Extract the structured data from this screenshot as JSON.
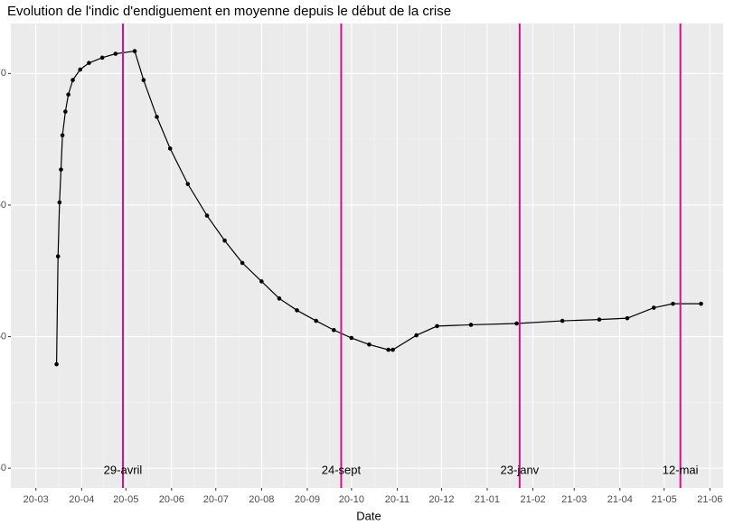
{
  "chart_data": {
    "type": "line",
    "title": "Evolution de l'indic d'endiguement en moyenne depuis le début de la crise",
    "x_label": "Date",
    "color": "#000000",
    "grid": true,
    "x": [
      "2020-03-15",
      "2020-03-16",
      "2020-03-17",
      "2020-03-18",
      "2020-03-19",
      "2020-03-21",
      "2020-03-23",
      "2020-03-26",
      "2020-03-31",
      "2020-04-06",
      "2020-04-15",
      "2020-04-24",
      "2020-05-07",
      "2020-05-13",
      "2020-05-22",
      "2020-05-31",
      "2020-06-12",
      "2020-06-25",
      "2020-07-07",
      "2020-07-19",
      "2020-08-01",
      "2020-08-13",
      "2020-08-25",
      "2020-09-07",
      "2020-09-19",
      "2020-10-01",
      "2020-10-13",
      "2020-10-26",
      "2020-10-29",
      "2020-11-14",
      "2020-11-28",
      "2020-12-21",
      "2021-01-21",
      "2021-02-21",
      "2021-03-18",
      "2021-04-06",
      "2021-04-24",
      "2021-05-07",
      "2021-05-26"
    ],
    "values": [
      47.9,
      56.1,
      60.2,
      62.7,
      65.3,
      67.1,
      68.4,
      69.5,
      70.3,
      70.8,
      71.2,
      71.5,
      71.7,
      69.5,
      66.7,
      64.3,
      61.6,
      59.2,
      57.3,
      55.6,
      54.2,
      52.9,
      52.0,
      51.2,
      50.5,
      49.9,
      49.4,
      49.0,
      49.0,
      50.1,
      50.8,
      50.9,
      51.0,
      51.2,
      51.3,
      51.4,
      52.2,
      52.5,
      52.5
    ],
    "xlim": [
      "2020-02-13",
      "2021-06-10"
    ],
    "xticks": [
      {
        "value": "2020-03-01",
        "label": "20-03"
      },
      {
        "value": "2020-04-01",
        "label": "20-04"
      },
      {
        "value": "2020-05-01",
        "label": "20-05"
      },
      {
        "value": "2020-06-01",
        "label": "20-06"
      },
      {
        "value": "2020-07-01",
        "label": "20-07"
      },
      {
        "value": "2020-08-01",
        "label": "20-08"
      },
      {
        "value": "2020-09-01",
        "label": "20-09"
      },
      {
        "value": "2020-10-01",
        "label": "20-10"
      },
      {
        "value": "2020-11-01",
        "label": "20-11"
      },
      {
        "value": "2020-12-01",
        "label": "20-12"
      },
      {
        "value": "2021-01-01",
        "label": "21-01"
      },
      {
        "value": "2021-02-01",
        "label": "21-02"
      },
      {
        "value": "2021-03-01",
        "label": "21-03"
      },
      {
        "value": "2021-04-01",
        "label": "21-04"
      },
      {
        "value": "2021-05-01",
        "label": "21-05"
      },
      {
        "value": "2021-06-01",
        "label": "21-06"
      }
    ],
    "ylim": [
      38.5,
      73.8
    ],
    "yticks": [
      40,
      50,
      60,
      70
    ],
    "events_color": "#d4108c",
    "events": [
      {
        "date": "2020-04-29",
        "label": "29-avril"
      },
      {
        "date": "2020-09-24",
        "label": "24-sept"
      },
      {
        "date": "2021-01-23",
        "label": "23-janv"
      },
      {
        "date": "2021-05-12",
        "label": "12-mai"
      }
    ]
  }
}
